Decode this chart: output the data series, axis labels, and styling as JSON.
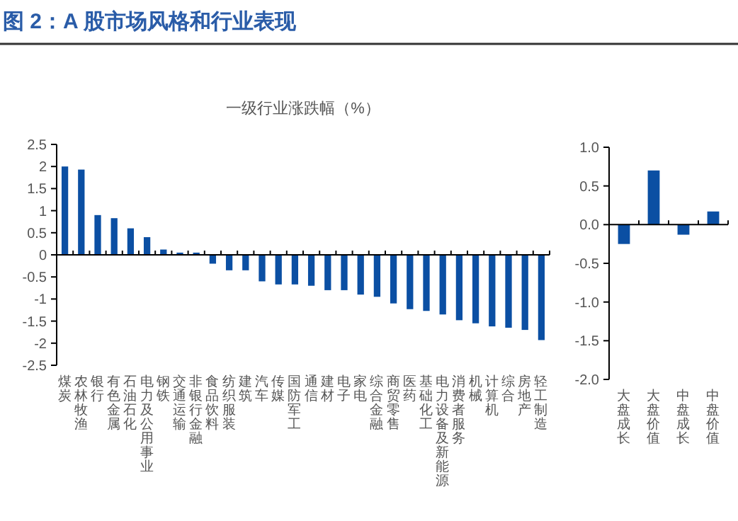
{
  "chart_data": [
    {
      "type": "bar",
      "title": "图 2：A 股市场风格和行业表现",
      "subtitle": "一级行业涨跌幅（%）",
      "categories": [
        "煤炭",
        "农林牧渔",
        "银行",
        "有色金属",
        "石油石化",
        "电力及公用事业",
        "钢铁",
        "交通运输",
        "非银行金融",
        "食品饮料",
        "纺织服装",
        "建筑",
        "汽车",
        "传媒",
        "国防军工",
        "通信",
        "建材",
        "电子",
        "家电",
        "综合金融",
        "商贸零售",
        "医药",
        "基础化工",
        "电力设备及新能源",
        "消费者服务",
        "机械",
        "计算机",
        "综合",
        "房地产",
        "轻工制造"
      ],
      "values": [
        2.0,
        1.93,
        0.9,
        0.83,
        0.6,
        0.4,
        0.12,
        0.05,
        0.05,
        -0.2,
        -0.35,
        -0.35,
        -0.6,
        -0.67,
        -0.67,
        -0.7,
        -0.8,
        -0.8,
        -0.9,
        -0.95,
        -1.1,
        -1.23,
        -1.27,
        -1.35,
        -1.48,
        -1.55,
        -1.62,
        -1.65,
        -1.7,
        -1.93
      ],
      "color": "#0b4fa3",
      "ylim": [
        -2.5,
        2.5
      ],
      "yticks": [
        -2.5,
        -2,
        -1.5,
        -1,
        -0.5,
        0,
        0.5,
        1,
        1.5,
        2,
        2.5
      ]
    },
    {
      "type": "bar",
      "categories": [
        "大盘成长",
        "大盘价值",
        "中盘成长",
        "中盘价值"
      ],
      "values": [
        -0.25,
        0.7,
        -0.13,
        0.17
      ],
      "color": "#0b4fa3",
      "ylim": [
        -2,
        1
      ],
      "yticks": [
        {
          "value": -2,
          "label": "-2.0"
        },
        {
          "value": -1.5,
          "label": "-1.5"
        },
        {
          "value": -1,
          "label": "-1.0"
        },
        {
          "value": -0.5,
          "label": "-0.5"
        },
        {
          "value": 0,
          "label": "0.0"
        },
        {
          "value": 0.5,
          "label": "0.5"
        },
        {
          "value": 1,
          "label": "1.0"
        }
      ]
    }
  ]
}
